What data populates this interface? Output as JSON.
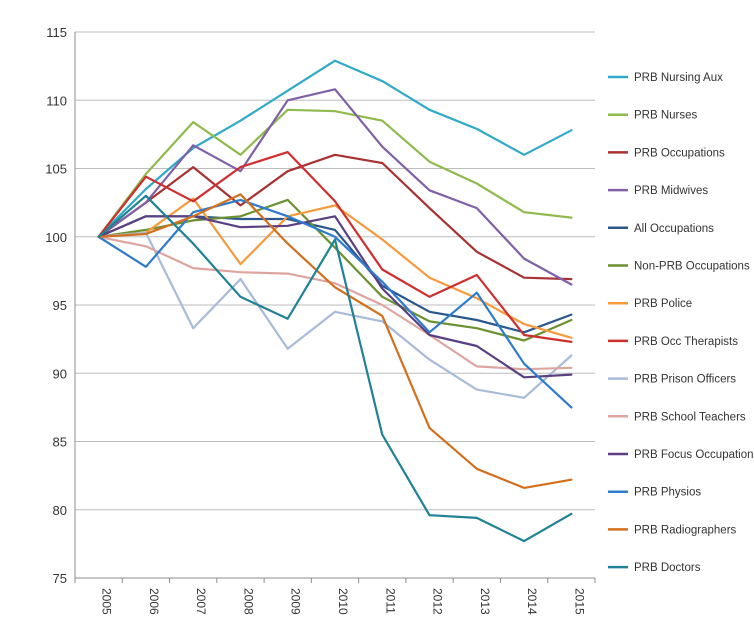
{
  "chart_data": {
    "type": "line",
    "title": "",
    "xlabel": "",
    "ylabel": "",
    "ylim": [
      75,
      115
    ],
    "yticks": [
      75,
      80,
      85,
      90,
      95,
      100,
      105,
      110,
      115
    ],
    "grid": "horizontal",
    "legend_position": "right",
    "categories": [
      "2005",
      "2006",
      "2007",
      "2008",
      "2009",
      "2010",
      "2011",
      "2012",
      "2013",
      "2014",
      "2015"
    ],
    "series": [
      {
        "name": "PRB Nursing Aux",
        "color": "#31a9c9",
        "values": [
          100,
          103.5,
          106.5,
          108.5,
          110.7,
          112.9,
          111.4,
          109.3,
          107.9,
          106.0,
          107.8
        ]
      },
      {
        "name": "PRB Nurses",
        "color": "#8fba4e",
        "values": [
          100,
          104.6,
          108.4,
          106.0,
          109.3,
          109.2,
          108.5,
          105.5,
          103.9,
          101.8,
          101.4
        ]
      },
      {
        "name": "PRB Occupations",
        "color": "#a83232",
        "values": [
          100,
          102.5,
          105.1,
          102.3,
          104.8,
          106.0,
          105.4,
          102.1,
          98.9,
          97.0,
          96.9
        ]
      },
      {
        "name": "PRB Midwives",
        "color": "#8060a6",
        "values": [
          100,
          102.5,
          106.7,
          104.8,
          110.0,
          110.8,
          106.6,
          103.4,
          102.1,
          98.4,
          96.5
        ]
      },
      {
        "name": "All Occupations",
        "color": "#2a578c",
        "values": [
          100,
          101.5,
          101.5,
          101.3,
          101.3,
          100.5,
          96.4,
          94.5,
          93.9,
          93.0,
          94.3
        ]
      },
      {
        "name": "Non-PRB Occupations",
        "color": "#6b9130",
        "values": [
          100,
          100.5,
          101.2,
          101.5,
          102.7,
          99.2,
          95.6,
          93.8,
          93.3,
          92.4,
          93.9
        ]
      },
      {
        "name": "PRB Police",
        "color": "#f79a3c",
        "values": [
          100,
          100.3,
          102.8,
          98.0,
          101.5,
          102.3,
          99.8,
          97.0,
          95.5,
          93.6,
          92.6
        ]
      },
      {
        "name": "PRB Occ Therapists",
        "color": "#cf2e2e",
        "values": [
          100,
          104.4,
          102.6,
          105.1,
          106.2,
          102.6,
          97.6,
          95.6,
          97.2,
          92.8,
          92.3
        ]
      },
      {
        "name": "PRB Prison Officers",
        "color": "#a8bbd9",
        "values": [
          100,
          100.3,
          93.3,
          96.9,
          91.8,
          94.5,
          93.8,
          91.0,
          88.8,
          88.2,
          91.3
        ]
      },
      {
        "name": "PRB School Teachers",
        "color": "#dea5a0",
        "values": [
          100,
          99.3,
          97.7,
          97.4,
          97.3,
          96.6,
          95.0,
          92.8,
          90.5,
          90.3,
          90.4
        ]
      },
      {
        "name": "PRB Focus Occupations",
        "color": "#5a3f82",
        "values": [
          100,
          101.5,
          101.5,
          100.7,
          100.8,
          101.5,
          96.2,
          92.8,
          92.0,
          89.7,
          89.9
        ]
      },
      {
        "name": "PRB Physios",
        "color": "#2e7bcc",
        "values": [
          100,
          97.8,
          101.8,
          102.7,
          101.5,
          100.0,
          96.7,
          93.0,
          95.9,
          90.7,
          87.5
        ]
      },
      {
        "name": "PRB Radiographers",
        "color": "#d2701f",
        "values": [
          100,
          100.2,
          101.5,
          103.1,
          99.5,
          96.3,
          94.2,
          86.0,
          83.0,
          81.6,
          82.2
        ]
      },
      {
        "name": "PRB Doctors",
        "color": "#1f8295",
        "values": [
          100,
          103.0,
          99.5,
          95.6,
          94.0,
          99.8,
          85.5,
          79.6,
          79.4,
          77.7,
          79.7
        ]
      }
    ]
  }
}
